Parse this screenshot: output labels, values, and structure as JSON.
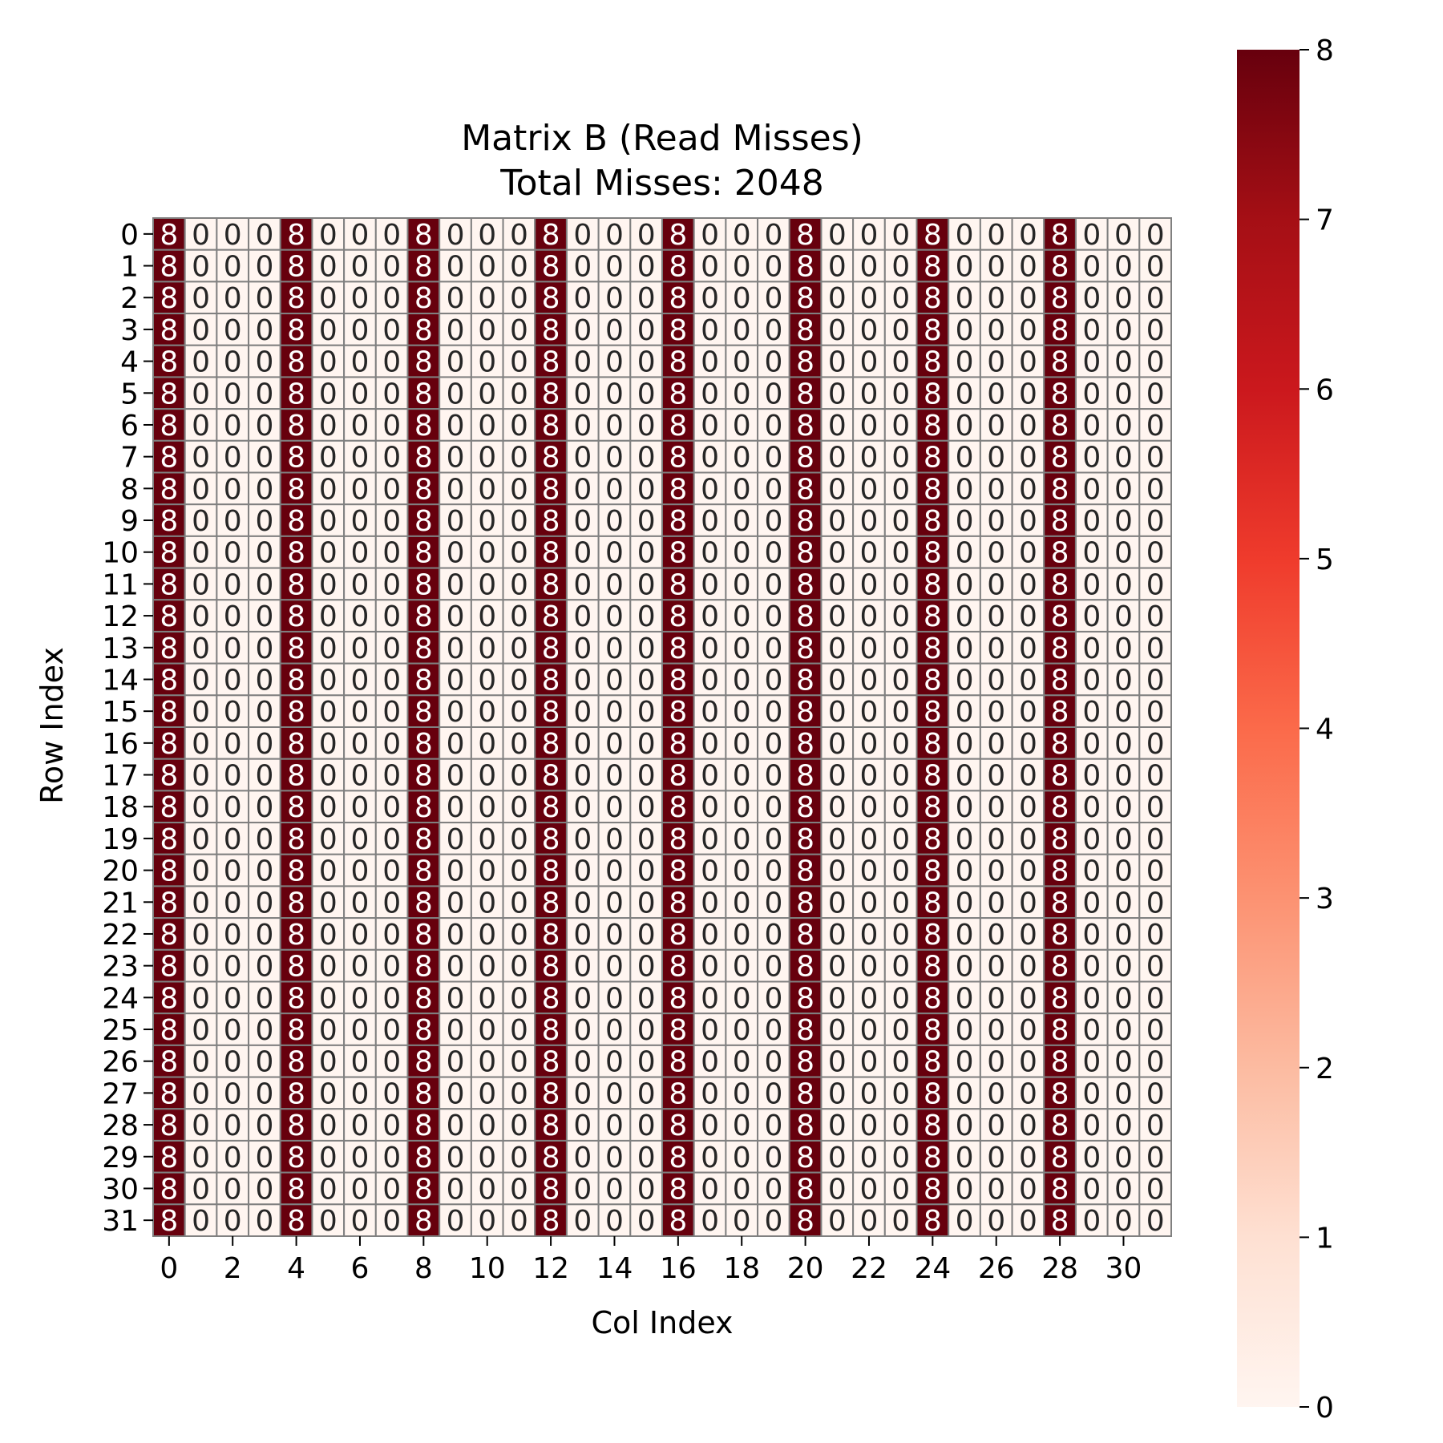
{
  "chart_data": {
    "type": "heatmap",
    "title_lines": [
      "Matrix B (Read Misses)",
      "Total Misses: 2048"
    ],
    "xlabel": "Col Index",
    "ylabel": "Row Index",
    "rows": 32,
    "cols": 32,
    "row_values": [
      8,
      0,
      0,
      0,
      8,
      0,
      0,
      0,
      8,
      0,
      0,
      0,
      8,
      0,
      0,
      0,
      8,
      0,
      0,
      0,
      8,
      0,
      0,
      0,
      8,
      0,
      0,
      0,
      8,
      0,
      0,
      0
    ],
    "x_tick_labels": [
      "0",
      "2",
      "4",
      "6",
      "8",
      "10",
      "12",
      "14",
      "16",
      "18",
      "20",
      "22",
      "24",
      "26",
      "28",
      "30"
    ],
    "y_tick_labels": [
      "0",
      "1",
      "2",
      "3",
      "4",
      "5",
      "6",
      "7",
      "8",
      "9",
      "10",
      "11",
      "12",
      "13",
      "14",
      "15",
      "16",
      "17",
      "18",
      "19",
      "20",
      "21",
      "22",
      "23",
      "24",
      "25",
      "26",
      "27",
      "28",
      "29",
      "30",
      "31"
    ],
    "colorbar": {
      "min": 0,
      "max": 8,
      "ticks": [
        "0",
        "1",
        "2",
        "3",
        "4",
        "5",
        "6",
        "7",
        "8"
      ],
      "colormap": "Reds",
      "stops": [
        "#fff5f0",
        "#fee0d2",
        "#fcbba1",
        "#fc9272",
        "#fb6a4a",
        "#ef3b2c",
        "#cb181d",
        "#a50f15",
        "#67000d"
      ]
    },
    "cell_edge_color": "#808080",
    "annot_dark_color": "#262626",
    "annot_light_color": "#ffffff"
  }
}
